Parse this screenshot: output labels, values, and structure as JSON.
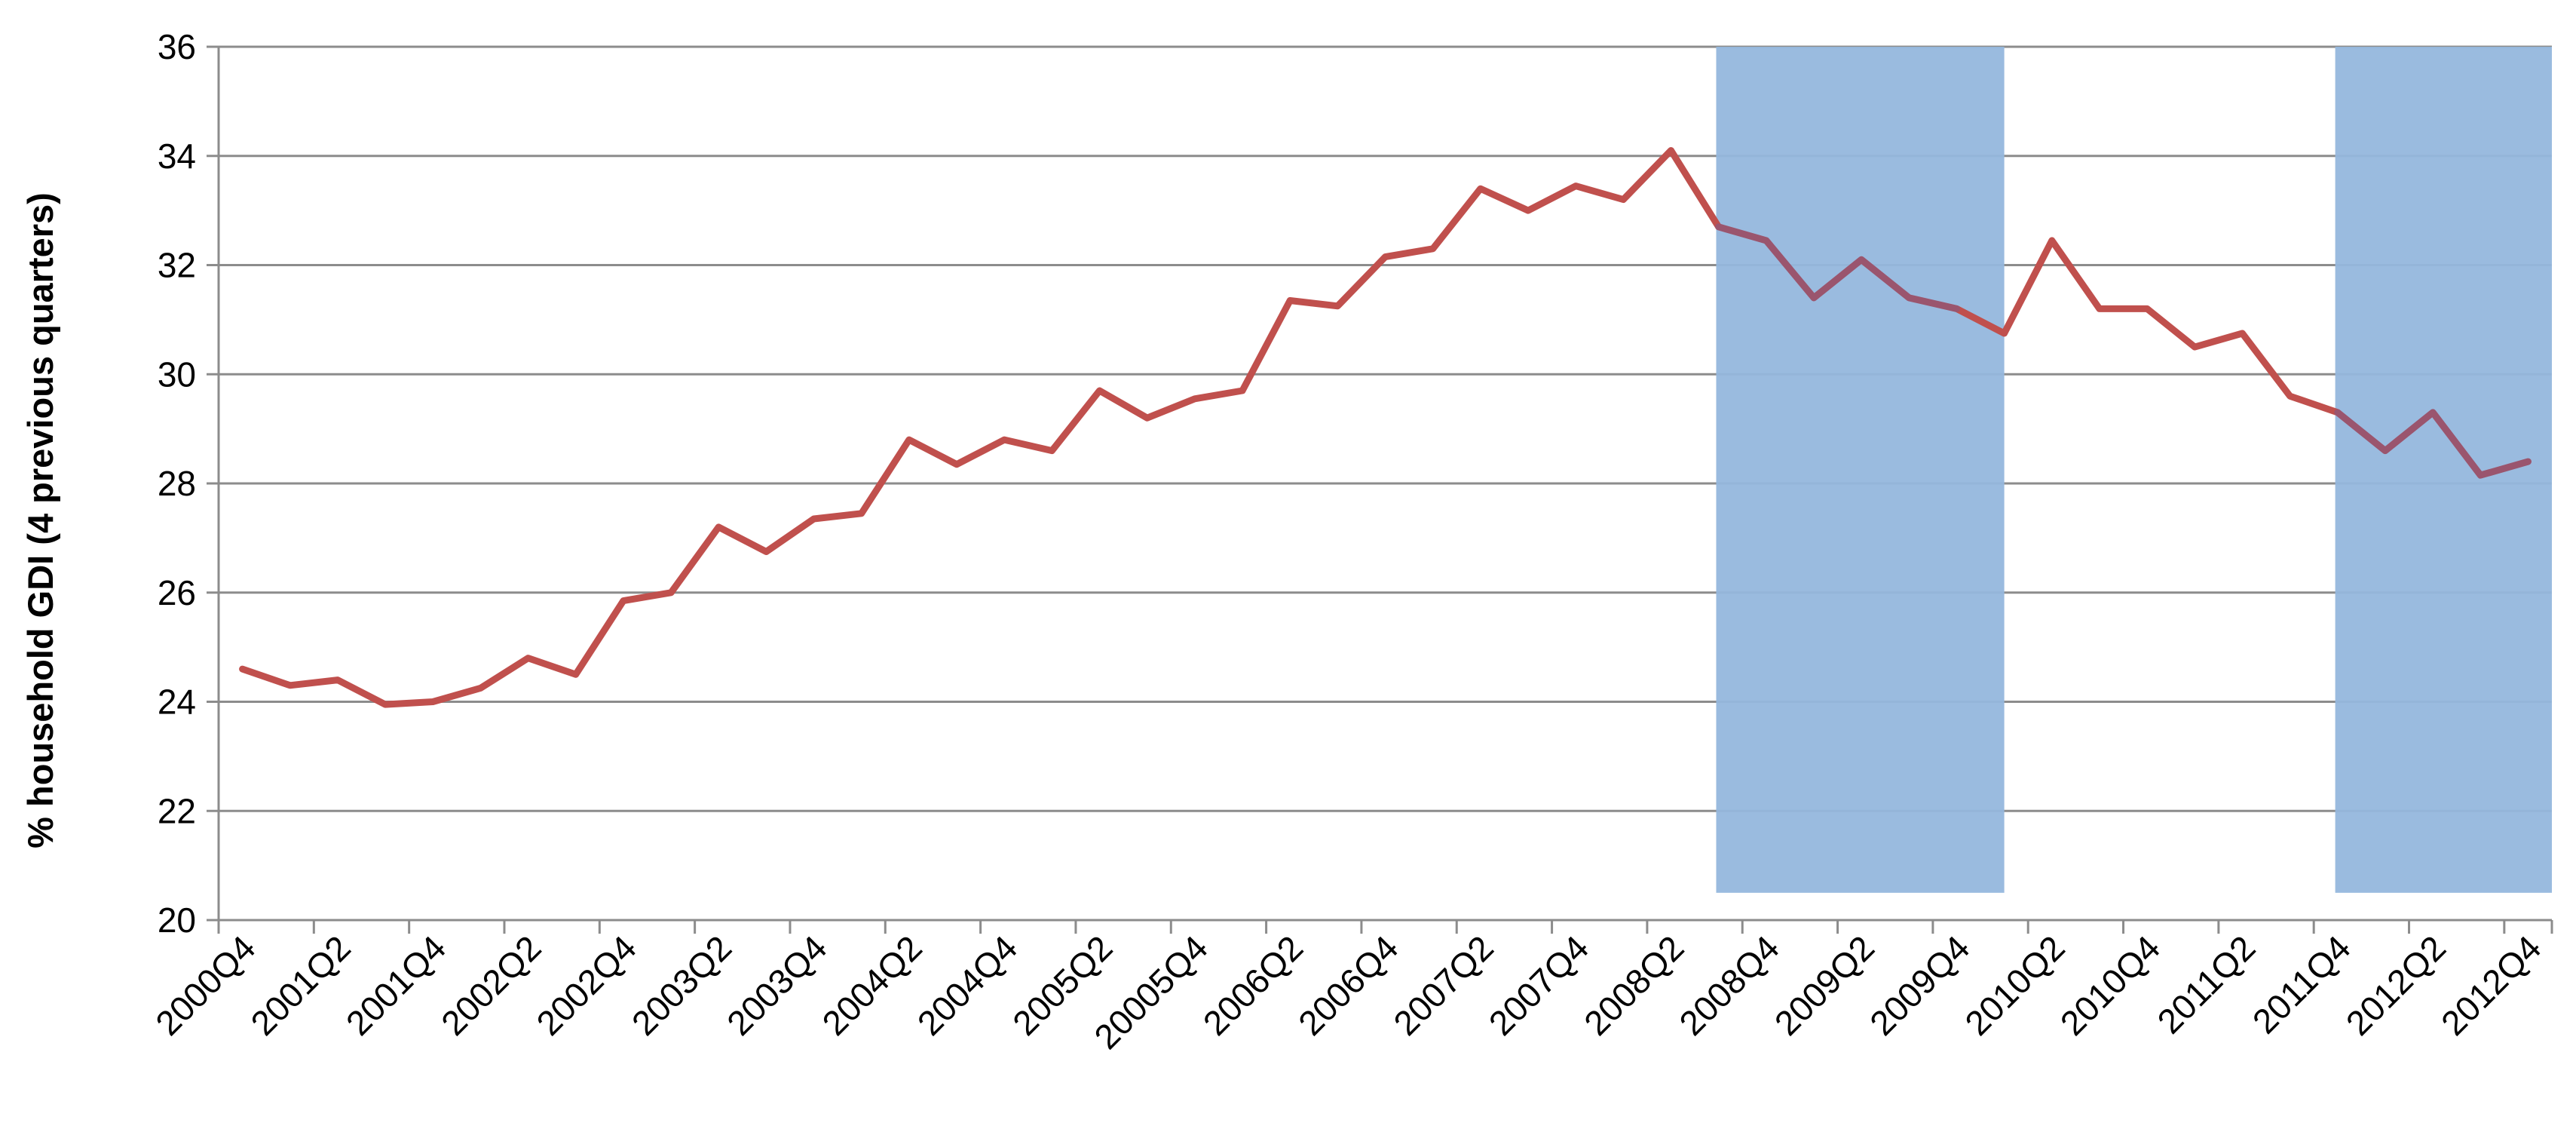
{
  "chart_data": {
    "type": "line",
    "title": "",
    "xlabel": "",
    "ylabel": "% household GDI (4 previous quarters)",
    "ylim": [
      20,
      36
    ],
    "yticks": [
      20,
      22,
      24,
      26,
      28,
      30,
      32,
      34,
      36
    ],
    "grid": "horizontal",
    "legend": "none",
    "x": [
      "2000Q4",
      "2001Q1",
      "2001Q2",
      "2001Q3",
      "2001Q4",
      "2002Q1",
      "2002Q2",
      "2002Q3",
      "2002Q4",
      "2003Q1",
      "2003Q2",
      "2003Q3",
      "2003Q4",
      "2004Q1",
      "2004Q2",
      "2004Q3",
      "2004Q4",
      "2005Q1",
      "2005Q2",
      "2005Q3",
      "2005Q4",
      "2006Q1",
      "2006Q2",
      "2006Q3",
      "2006Q4",
      "2007Q1",
      "2007Q2",
      "2007Q3",
      "2007Q4",
      "2008Q1",
      "2008Q2",
      "2008Q3",
      "2008Q4",
      "2009Q1",
      "2009Q2",
      "2009Q3",
      "2009Q4",
      "2010Q1",
      "2010Q2",
      "2010Q3",
      "2010Q4",
      "2011Q1",
      "2011Q2",
      "2011Q3",
      "2011Q4",
      "2012Q1",
      "2012Q2",
      "2012Q3",
      "2012Q4"
    ],
    "xtick_labels": [
      "2000Q4",
      "2001Q2",
      "2001Q4",
      "2002Q2",
      "2002Q4",
      "2003Q2",
      "2003Q4",
      "2004Q2",
      "2004Q4",
      "2005Q2",
      "20005Q4",
      "2006Q2",
      "2006Q4",
      "2007Q2",
      "2007Q4",
      "2008Q2",
      "2008Q4",
      "2009Q2",
      "2009Q4",
      "2010Q2",
      "2010Q4",
      "2011Q2",
      "2011Q4",
      "2012Q2",
      "2012Q4"
    ],
    "series": [
      {
        "color": "#c0504d",
        "values": [
          24.6,
          24.3,
          24.4,
          23.95,
          24.0,
          24.25,
          24.8,
          24.5,
          25.85,
          26.0,
          27.2,
          26.75,
          27.35,
          27.45,
          28.8,
          28.35,
          28.8,
          28.6,
          29.7,
          29.2,
          29.55,
          29.7,
          31.35,
          31.25,
          32.15,
          32.3,
          33.4,
          33.0,
          33.45,
          33.2,
          34.1,
          32.7,
          32.45,
          31.4,
          32.1,
          31.4,
          31.2,
          30.75,
          32.45,
          31.2,
          31.2,
          30.5,
          30.75,
          29.6,
          29.3,
          28.6,
          29.3,
          28.15,
          28.4
        ]
      }
    ],
    "shaded_regions": [
      {
        "from": "2008Q3",
        "to": "2009Q4",
        "color": "#95b7dd"
      },
      {
        "from": "2011Q4",
        "to": "2012Q4",
        "color": "#95b7dd"
      }
    ]
  }
}
